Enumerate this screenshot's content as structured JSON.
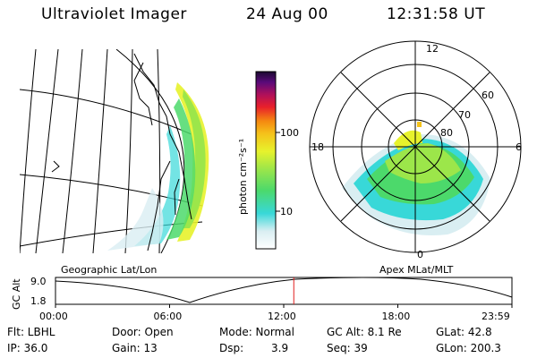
{
  "header": {
    "instrument": "Ultraviolet Imager",
    "date": "24 Aug 00",
    "time": "12:31:58 UT"
  },
  "colorbar": {
    "label": "photon cm⁻²s⁻¹",
    "ticks": [
      "100",
      "10"
    ]
  },
  "polar": {
    "mlt_labels": {
      "top": "12",
      "left": "18",
      "right": "6",
      "bottom": "0"
    },
    "lat_labels": [
      "60",
      "70",
      "80"
    ]
  },
  "timeline": {
    "ylabel": "GC Alt",
    "yticks": [
      "9.0",
      "1.8"
    ],
    "left_title": "Geographic Lat/Lon",
    "right_title": "Apex MLat/MLT",
    "xticks": [
      "00:00",
      "06:00",
      "12:00",
      "18:00",
      "23:59"
    ],
    "current_time_hours": 12.53
  },
  "info": {
    "filter": "Flt: LBHL",
    "ip": "IP: 36.0",
    "door": "Door: Open",
    "gain": "Gain: 13",
    "mode": "Mode: Normal",
    "dsp_label": "Dsp:",
    "dsp_value": "3.9",
    "gc_alt": "GC Alt: 8.1 Re",
    "seq": "Seq: 39",
    "glat": "GLat:  42.8",
    "glon": "GLon: 200.3"
  }
}
